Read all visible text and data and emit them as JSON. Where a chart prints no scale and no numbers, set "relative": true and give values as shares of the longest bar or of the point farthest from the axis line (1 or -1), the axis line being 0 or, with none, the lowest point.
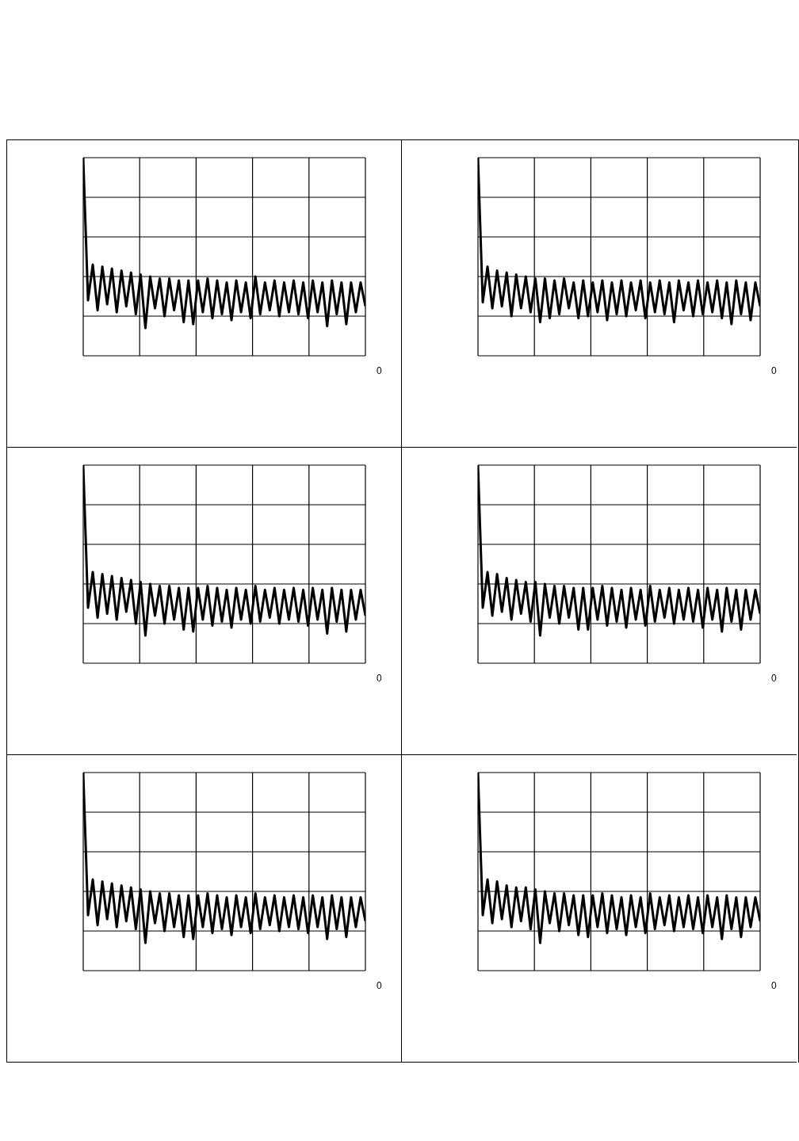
{
  "chart_data": [
    {
      "type": "line",
      "relative": true,
      "grid": true,
      "annotations": [
        "0"
      ],
      "categories": [
        null,
        null,
        null,
        null,
        null,
        null,
        null,
        null,
        null,
        null,
        null,
        null,
        null,
        null,
        null,
        null,
        null,
        null,
        null,
        null,
        null,
        null,
        null,
        null,
        null,
        null,
        null,
        null,
        null,
        null,
        null,
        null,
        null,
        null,
        null,
        null,
        null,
        null,
        null,
        null,
        null,
        null,
        null,
        null,
        null,
        null,
        null,
        null,
        null,
        null,
        null,
        null,
        null,
        null,
        null,
        null,
        null,
        null,
        null,
        null
      ],
      "series": [
        {
          "color": "#000000",
          "values": [
            1,
            0.28,
            0.46,
            0.23,
            0.45,
            0.26,
            0.44,
            0.22,
            0.43,
            0.25,
            0.42,
            0.21,
            0.41,
            0.14,
            0.4,
            0.24,
            0.39,
            0.2,
            0.39,
            0.23,
            0.38,
            0.17,
            0.38,
            0.16,
            0.38,
            0.22,
            0.39,
            0.19,
            0.38,
            0.21,
            0.37,
            0.18,
            0.38,
            0.22,
            0.37,
            0.19,
            0.4,
            0.21,
            0.37,
            0.23,
            0.38,
            0.2,
            0.37,
            0.22,
            0.38,
            0.21,
            0.37,
            0.19,
            0.38,
            0.22,
            0.37,
            0.15,
            0.38,
            0.21,
            0.37,
            0.16,
            0.37,
            0.22,
            0.37,
            0.25
          ]
        }
      ]
    },
    {
      "type": "line",
      "relative": true,
      "grid": true,
      "annotations": [
        "0"
      ],
      "categories": [
        null,
        null,
        null,
        null,
        null,
        null,
        null,
        null,
        null,
        null,
        null,
        null,
        null,
        null,
        null,
        null,
        null,
        null,
        null,
        null,
        null,
        null,
        null,
        null,
        null,
        null,
        null,
        null,
        null,
        null,
        null,
        null,
        null,
        null,
        null,
        null,
        null,
        null,
        null,
        null,
        null,
        null,
        null,
        null,
        null,
        null,
        null,
        null,
        null,
        null,
        null,
        null,
        null,
        null,
        null,
        null,
        null,
        null,
        null,
        null
      ],
      "series": [
        {
          "color": "#000000",
          "values": [
            1,
            0.27,
            0.45,
            0.24,
            0.43,
            0.25,
            0.42,
            0.2,
            0.41,
            0.24,
            0.4,
            0.22,
            0.39,
            0.17,
            0.39,
            0.19,
            0.38,
            0.21,
            0.39,
            0.24,
            0.37,
            0.19,
            0.38,
            0.2,
            0.37,
            0.22,
            0.38,
            0.18,
            0.37,
            0.21,
            0.38,
            0.2,
            0.37,
            0.23,
            0.38,
            0.19,
            0.37,
            0.22,
            0.38,
            0.21,
            0.37,
            0.17,
            0.38,
            0.23,
            0.37,
            0.2,
            0.38,
            0.21,
            0.37,
            0.22,
            0.38,
            0.19,
            0.37,
            0.16,
            0.38,
            0.21,
            0.37,
            0.18,
            0.37,
            0.25
          ]
        }
      ]
    },
    {
      "type": "line",
      "relative": true,
      "grid": true,
      "annotations": [
        "0"
      ],
      "categories": [
        null,
        null,
        null,
        null,
        null,
        null,
        null,
        null,
        null,
        null,
        null,
        null,
        null,
        null,
        null,
        null,
        null,
        null,
        null,
        null,
        null,
        null,
        null,
        null,
        null,
        null,
        null,
        null,
        null,
        null,
        null,
        null,
        null,
        null,
        null,
        null,
        null,
        null,
        null,
        null,
        null,
        null,
        null,
        null,
        null,
        null,
        null,
        null,
        null,
        null,
        null,
        null,
        null,
        null,
        null,
        null,
        null,
        null,
        null,
        null
      ],
      "series": [
        {
          "color": "#000000",
          "values": [
            1,
            0.28,
            0.46,
            0.23,
            0.45,
            0.25,
            0.44,
            0.22,
            0.43,
            0.26,
            0.42,
            0.2,
            0.41,
            0.14,
            0.4,
            0.24,
            0.39,
            0.2,
            0.39,
            0.22,
            0.38,
            0.17,
            0.38,
            0.16,
            0.38,
            0.22,
            0.39,
            0.19,
            0.38,
            0.21,
            0.37,
            0.18,
            0.38,
            0.22,
            0.37,
            0.2,
            0.39,
            0.21,
            0.37,
            0.23,
            0.38,
            0.2,
            0.37,
            0.22,
            0.38,
            0.21,
            0.37,
            0.19,
            0.38,
            0.22,
            0.37,
            0.15,
            0.38,
            0.21,
            0.37,
            0.16,
            0.37,
            0.22,
            0.37,
            0.24
          ]
        }
      ]
    },
    {
      "type": "line",
      "relative": true,
      "grid": true,
      "annotations": [
        "0"
      ],
      "categories": [
        null,
        null,
        null,
        null,
        null,
        null,
        null,
        null,
        null,
        null,
        null,
        null,
        null,
        null,
        null,
        null,
        null,
        null,
        null,
        null,
        null,
        null,
        null,
        null,
        null,
        null,
        null,
        null,
        null,
        null,
        null,
        null,
        null,
        null,
        null,
        null,
        null,
        null,
        null,
        null,
        null,
        null,
        null,
        null,
        null,
        null,
        null,
        null,
        null,
        null,
        null,
        null,
        null,
        null,
        null,
        null,
        null,
        null,
        null,
        null
      ],
      "series": [
        {
          "color": "#000000",
          "values": [
            1,
            0.28,
            0.46,
            0.24,
            0.45,
            0.26,
            0.43,
            0.22,
            0.42,
            0.25,
            0.41,
            0.21,
            0.41,
            0.14,
            0.4,
            0.23,
            0.39,
            0.2,
            0.39,
            0.23,
            0.38,
            0.17,
            0.38,
            0.17,
            0.38,
            0.22,
            0.39,
            0.19,
            0.38,
            0.21,
            0.37,
            0.18,
            0.38,
            0.22,
            0.37,
            0.19,
            0.39,
            0.21,
            0.37,
            0.23,
            0.38,
            0.2,
            0.37,
            0.22,
            0.38,
            0.21,
            0.37,
            0.18,
            0.38,
            0.22,
            0.37,
            0.16,
            0.38,
            0.21,
            0.37,
            0.17,
            0.37,
            0.22,
            0.37,
            0.25
          ]
        }
      ]
    },
    {
      "type": "line",
      "relative": true,
      "grid": true,
      "annotations": [
        "0"
      ],
      "categories": [
        null,
        null,
        null,
        null,
        null,
        null,
        null,
        null,
        null,
        null,
        null,
        null,
        null,
        null,
        null,
        null,
        null,
        null,
        null,
        null,
        null,
        null,
        null,
        null,
        null,
        null,
        null,
        null,
        null,
        null,
        null,
        null,
        null,
        null,
        null,
        null,
        null,
        null,
        null,
        null,
        null,
        null,
        null,
        null,
        null,
        null,
        null,
        null,
        null,
        null,
        null,
        null,
        null,
        null,
        null,
        null,
        null,
        null,
        null,
        null
      ],
      "series": [
        {
          "color": "#000000",
          "values": [
            1,
            0.28,
            0.46,
            0.23,
            0.45,
            0.26,
            0.44,
            0.22,
            0.43,
            0.25,
            0.42,
            0.21,
            0.41,
            0.14,
            0.4,
            0.24,
            0.39,
            0.2,
            0.39,
            0.22,
            0.38,
            0.17,
            0.38,
            0.16,
            0.38,
            0.22,
            0.39,
            0.19,
            0.38,
            0.21,
            0.37,
            0.18,
            0.38,
            0.22,
            0.37,
            0.19,
            0.39,
            0.21,
            0.37,
            0.23,
            0.38,
            0.2,
            0.37,
            0.22,
            0.38,
            0.21,
            0.37,
            0.19,
            0.38,
            0.22,
            0.37,
            0.16,
            0.38,
            0.21,
            0.37,
            0.17,
            0.37,
            0.22,
            0.37,
            0.25
          ]
        }
      ]
    },
    {
      "type": "line",
      "relative": true,
      "grid": true,
      "annotations": [
        "0"
      ],
      "categories": [
        null,
        null,
        null,
        null,
        null,
        null,
        null,
        null,
        null,
        null,
        null,
        null,
        null,
        null,
        null,
        null,
        null,
        null,
        null,
        null,
        null,
        null,
        null,
        null,
        null,
        null,
        null,
        null,
        null,
        null,
        null,
        null,
        null,
        null,
        null,
        null,
        null,
        null,
        null,
        null,
        null,
        null,
        null,
        null,
        null,
        null,
        null,
        null,
        null,
        null,
        null,
        null,
        null,
        null,
        null,
        null,
        null,
        null,
        null,
        null
      ],
      "series": [
        {
          "color": "#000000",
          "values": [
            1,
            0.28,
            0.46,
            0.24,
            0.45,
            0.26,
            0.43,
            0.22,
            0.42,
            0.25,
            0.42,
            0.21,
            0.41,
            0.14,
            0.4,
            0.24,
            0.39,
            0.2,
            0.39,
            0.23,
            0.38,
            0.18,
            0.38,
            0.17,
            0.38,
            0.22,
            0.39,
            0.19,
            0.38,
            0.21,
            0.37,
            0.18,
            0.38,
            0.22,
            0.37,
            0.19,
            0.39,
            0.21,
            0.37,
            0.23,
            0.38,
            0.2,
            0.37,
            0.22,
            0.38,
            0.21,
            0.37,
            0.19,
            0.38,
            0.22,
            0.37,
            0.16,
            0.38,
            0.21,
            0.37,
            0.17,
            0.37,
            0.22,
            0.37,
            0.25
          ]
        }
      ]
    }
  ]
}
